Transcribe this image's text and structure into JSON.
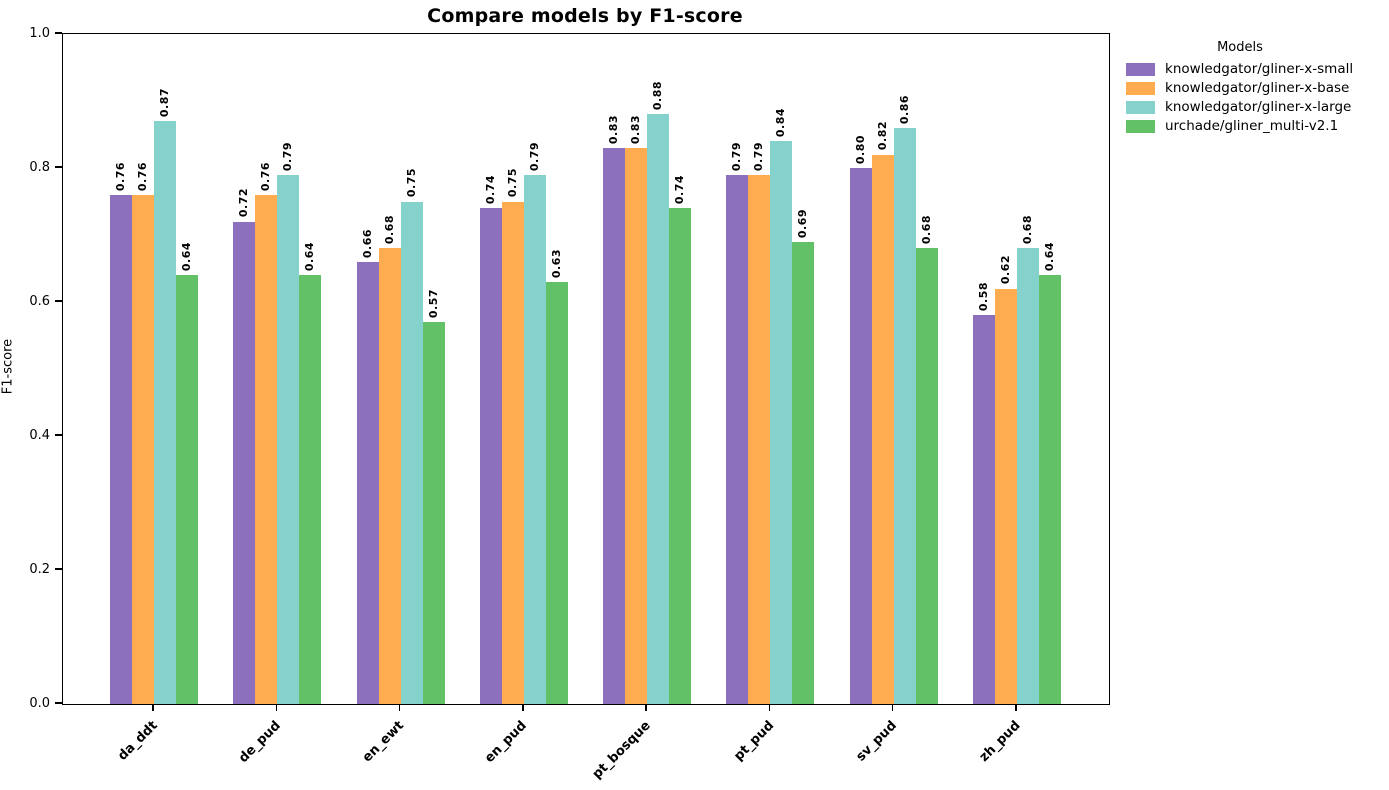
{
  "chart_data": {
    "type": "bar",
    "title": "Compare models by F1-score",
    "ylabel": "F1-score",
    "xlabel": "",
    "ylim": [
      0.0,
      1.0
    ],
    "yticks": [
      0.0,
      0.2,
      0.4,
      0.6,
      0.8,
      1.0
    ],
    "grid": false,
    "bar_labels": true,
    "bar_label_rotation": 90,
    "legend": {
      "title": "Models",
      "position": "outside-upper-right"
    },
    "categories": [
      "da_ddt",
      "de_pud",
      "en_ewt",
      "en_pud",
      "pt_bosque",
      "pt_pud",
      "sv_pud",
      "zh_pud"
    ],
    "series": [
      {
        "name": "knowledgator/gliner-x-small",
        "color": "#8c70be",
        "values": [
          0.76,
          0.72,
          0.66,
          0.74,
          0.83,
          0.79,
          0.8,
          0.58
        ]
      },
      {
        "name": "knowledgator/gliner-x-base",
        "color": "#ffab4f",
        "values": [
          0.76,
          0.76,
          0.68,
          0.75,
          0.83,
          0.79,
          0.82,
          0.62
        ]
      },
      {
        "name": "knowledgator/gliner-x-large",
        "color": "#85d2cc",
        "values": [
          0.87,
          0.79,
          0.75,
          0.79,
          0.88,
          0.84,
          0.86,
          0.68
        ]
      },
      {
        "name": "urchade/gliner_multi-v2.1",
        "color": "#62c066",
        "values": [
          0.64,
          0.64,
          0.57,
          0.63,
          0.74,
          0.69,
          0.68,
          0.64
        ]
      }
    ]
  }
}
